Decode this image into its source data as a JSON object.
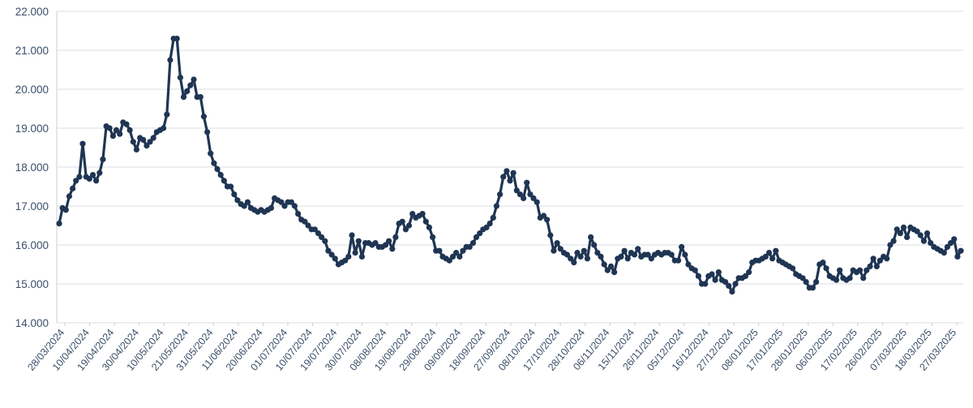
{
  "chart_data": {
    "type": "line",
    "title": "",
    "xlabel": "",
    "ylabel": "",
    "ylim": [
      14000,
      22000
    ],
    "grid": true,
    "legend": "none",
    "line_color": "#1f3553",
    "marker_color": "#1f3553",
    "y_ticks": [
      {
        "value": 14000,
        "label": "14.000"
      },
      {
        "value": 15000,
        "label": "15.000"
      },
      {
        "value": 16000,
        "label": "16.000"
      },
      {
        "value": 17000,
        "label": "17.000"
      },
      {
        "value": 18000,
        "label": "18.000"
      },
      {
        "value": 19000,
        "label": "19.000"
      },
      {
        "value": 20000,
        "label": "20.000"
      },
      {
        "value": 21000,
        "label": "21.000"
      },
      {
        "value": 22000,
        "label": "22.000"
      }
    ],
    "x_tick_labels": [
      "28/03/2024",
      "10/04/2024",
      "19/04/2024",
      "30/04/2024",
      "10/05/2024",
      "21/05/2024",
      "31/05/2024",
      "11/06/2024",
      "20/06/2024",
      "01/07/2024",
      "10/07/2024",
      "19/07/2024",
      "30/07/2024",
      "08/08/2024",
      "19/08/2024",
      "29/08/2024",
      "09/09/2024",
      "18/09/2024",
      "27/09/2024",
      "08/10/2024",
      "17/10/2024",
      "28/10/2024",
      "06/11/2024",
      "15/11/2024",
      "26/11/2024",
      "05/12/2024",
      "16/12/2024",
      "27/12/2024",
      "08/01/2025",
      "17/01/2025",
      "28/01/2025",
      "06/02/2025",
      "17/02/2025",
      "26/02/2025",
      "07/03/2025",
      "18/03/2025",
      "27/03/2025"
    ],
    "series": [
      {
        "values": [
          16550,
          16950,
          16900,
          17250,
          17450,
          17650,
          17750,
          18600,
          17750,
          17700,
          17800,
          17650,
          17850,
          18200,
          19050,
          19000,
          18800,
          18950,
          18850,
          19150,
          19100,
          18950,
          18650,
          18450,
          18750,
          18700,
          18550,
          18650,
          18750,
          18900,
          18950,
          19000,
          19350,
          20750,
          21300,
          21300,
          20300,
          19800,
          19950,
          20100,
          20250,
          19800,
          19800,
          19300,
          18900,
          18350,
          18100,
          17950,
          17800,
          17650,
          17500,
          17500,
          17300,
          17150,
          17050,
          17000,
          17100,
          16950,
          16900,
          16850,
          16900,
          16850,
          16900,
          16950,
          17200,
          17150,
          17100,
          17000,
          17100,
          17100,
          17000,
          16800,
          16650,
          16600,
          16500,
          16400,
          16400,
          16300,
          16200,
          16100,
          15850,
          15750,
          15650,
          15500,
          15550,
          15600,
          15700,
          16250,
          15800,
          16100,
          15700,
          16050,
          16050,
          16000,
          16050,
          15950,
          15950,
          16000,
          16100,
          15900,
          16200,
          16550,
          16600,
          16400,
          16500,
          16800,
          16700,
          16750,
          16800,
          16600,
          16450,
          16200,
          15850,
          15850,
          15700,
          15650,
          15600,
          15700,
          15800,
          15700,
          15850,
          15950,
          15950,
          16050,
          16200,
          16300,
          16400,
          16450,
          16550,
          16700,
          17000,
          17300,
          17750,
          17900,
          17650,
          17850,
          17400,
          17300,
          17200,
          17600,
          17300,
          17200,
          17100,
          16700,
          16750,
          16650,
          16250,
          15850,
          16050,
          15900,
          15800,
          15750,
          15650,
          15550,
          15800,
          15700,
          15850,
          15650,
          16200,
          16000,
          15800,
          15700,
          15500,
          15350,
          15450,
          15300,
          15650,
          15700,
          15850,
          15650,
          15800,
          15750,
          15900,
          15700,
          15750,
          15750,
          15650,
          15750,
          15800,
          15750,
          15800,
          15800,
          15750,
          15600,
          15600,
          15950,
          15750,
          15500,
          15400,
          15350,
          15200,
          15000,
          15000,
          15200,
          15250,
          15100,
          15300,
          15100,
          15050,
          14950,
          14800,
          15000,
          15150,
          15150,
          15200,
          15300,
          15550,
          15600,
          15600,
          15650,
          15700,
          15800,
          15650,
          15850,
          15600,
          15550,
          15500,
          15450,
          15400,
          15250,
          15200,
          15150,
          15050,
          14900,
          14900,
          15050,
          15500,
          15550,
          15400,
          15200,
          15150,
          15100,
          15350,
          15150,
          15100,
          15150,
          15350,
          15300,
          15350,
          15150,
          15350,
          15450,
          15650,
          15450,
          15600,
          15700,
          15650,
          16000,
          16100,
          16400,
          16300,
          16450,
          16200,
          16450,
          16400,
          16350,
          16250,
          16100,
          16300,
          16050,
          15950,
          15900,
          15850,
          15800,
          15950,
          16050,
          16150,
          15700,
          15850
        ]
      }
    ]
  }
}
